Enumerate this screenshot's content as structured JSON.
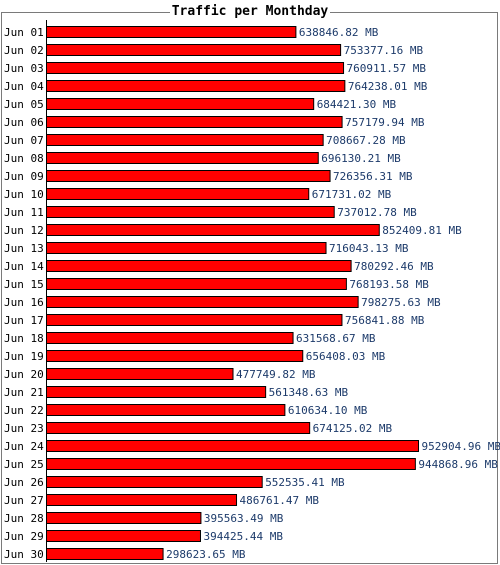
{
  "chart_data": {
    "type": "bar",
    "orientation": "horizontal",
    "title": "Traffic per Monthday",
    "value_unit": "MB",
    "categories": [
      "Jun 01",
      "Jun 02",
      "Jun 03",
      "Jun 04",
      "Jun 05",
      "Jun 06",
      "Jun 07",
      "Jun 08",
      "Jun 09",
      "Jun 10",
      "Jun 11",
      "Jun 12",
      "Jun 13",
      "Jun 14",
      "Jun 15",
      "Jun 16",
      "Jun 17",
      "Jun 18",
      "Jun 19",
      "Jun 20",
      "Jun 21",
      "Jun 22",
      "Jun 23",
      "Jun 24",
      "Jun 25",
      "Jun 26",
      "Jun 27",
      "Jun 28",
      "Jun 29",
      "Jun 30"
    ],
    "values": [
      638846.82,
      753377.16,
      760911.57,
      764238.01,
      684421.3,
      757179.94,
      708667.28,
      696130.21,
      726356.31,
      671731.02,
      737012.78,
      852409.81,
      716043.13,
      780292.46,
      768193.58,
      798275.63,
      756841.88,
      631568.67,
      656408.03,
      477749.82,
      561348.63,
      610634.1,
      674125.02,
      952904.96,
      944868.96,
      552535.41,
      486761.47,
      395563.49,
      394425.44,
      298623.65
    ],
    "value_labels": [
      "638846.82 MB",
      "753377.16 MB",
      "760911.57 MB",
      "764238.01 MB",
      "684421.30 MB",
      "757179.94 MB",
      "708667.28 MB",
      "696130.21 MB",
      "726356.31 MB",
      "671731.02 MB",
      "737012.78 MB",
      "852409.81 MB",
      "716043.13 MB",
      "780292.46 MB",
      "768193.58 MB",
      "798275.63 MB",
      "756841.88 MB",
      "631568.67 MB",
      "656408.03 MB",
      "477749.82 MB",
      "561348.63 MB",
      "610634.10 MB",
      "674125.02 MB",
      "952904.96 MB",
      "944868.96 MB",
      "552535.41 MB",
      "486761.47 MB",
      "395563.49 MB",
      "394425.44 MB",
      "298623.65 MB"
    ],
    "grid": false,
    "legend": "none",
    "colors": {
      "bar": "#ff0000",
      "bar_stroke": "#000000",
      "label": "#1c3a6a",
      "category": "#000000",
      "frame": "#7a7a7a"
    }
  }
}
